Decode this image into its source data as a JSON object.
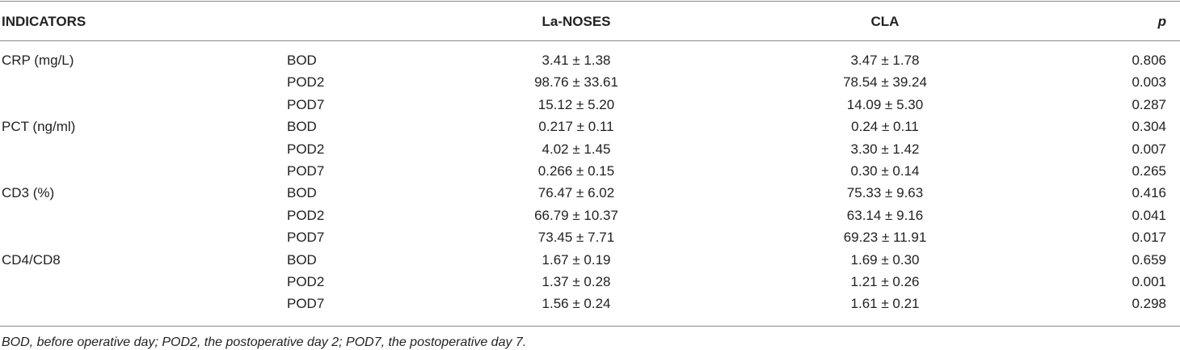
{
  "table": {
    "header": {
      "indicators": "INDICATORS",
      "group_a": "La-NOSES",
      "group_b": "CLA",
      "p": "p"
    },
    "groups": [
      {
        "indicator": "CRP (mg/L)",
        "rows": [
          [
            "BOD",
            "3.41 ± 1.38",
            "3.47 ± 1.78",
            "0.806"
          ],
          [
            "POD2",
            "98.76 ± 33.61",
            "78.54 ± 39.24",
            "0.003"
          ],
          [
            "POD7",
            "15.12 ± 5.20",
            "14.09 ± 5.30",
            "0.287"
          ]
        ]
      },
      {
        "indicator": "PCT (ng/ml)",
        "rows": [
          [
            "BOD",
            "0.217 ± 0.11",
            "0.24 ± 0.11",
            "0.304"
          ],
          [
            "POD2",
            "4.02 ± 1.45",
            "3.30 ± 1.42",
            "0.007"
          ],
          [
            "POD7",
            "0.266 ± 0.15",
            "0.30 ± 0.14",
            "0.265"
          ]
        ]
      },
      {
        "indicator": "CD3 (%)",
        "rows": [
          [
            "BOD",
            "76.47 ± 6.02",
            "75.33 ± 9.63",
            "0.416"
          ],
          [
            "POD2",
            "66.79 ± 10.37",
            "63.14 ± 9.16",
            "0.041"
          ],
          [
            "POD7",
            "73.45 ± 7.71",
            "69.23 ± 11.91",
            "0.017"
          ]
        ]
      },
      {
        "indicator": "CD4/CD8",
        "rows": [
          [
            "BOD",
            "1.67 ± 0.19",
            "1.69 ± 0.30",
            "0.659"
          ],
          [
            "POD2",
            "1.37 ± 0.28",
            "1.21 ± 0.26",
            "0.001"
          ],
          [
            "POD7",
            "1.56 ± 0.24",
            "1.61 ± 0.21",
            "0.298"
          ]
        ]
      }
    ],
    "footnote": "BOD, before operative day; POD2, the postoperative day 2; POD7, the postoperative day 7."
  }
}
